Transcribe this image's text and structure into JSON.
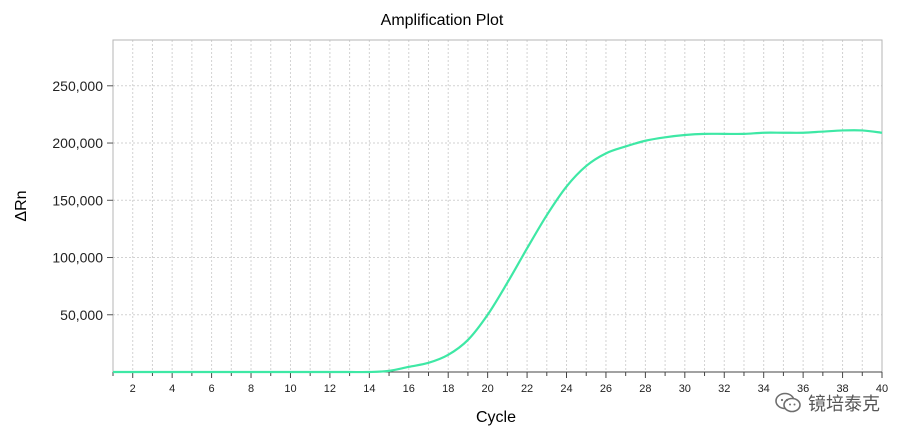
{
  "chart_data": {
    "type": "line",
    "title": "Amplification Plot",
    "xlabel": "Cycle",
    "ylabel": "ΔRn",
    "xlim": [
      1,
      40
    ],
    "ylim": [
      0,
      290000
    ],
    "x_ticks": [
      2,
      4,
      6,
      8,
      10,
      12,
      14,
      16,
      18,
      20,
      22,
      24,
      26,
      28,
      30,
      32,
      34,
      36,
      38,
      40
    ],
    "y_ticks": [
      50000,
      100000,
      150000,
      200000,
      250000
    ],
    "y_tick_labels": [
      "50,000",
      "100,000",
      "150,000",
      "200,000",
      "250,000"
    ],
    "grid": true,
    "series": [
      {
        "color": "#3ee8a5",
        "x": [
          1,
          2,
          4,
          6,
          8,
          10,
          12,
          13,
          14,
          15,
          16,
          17,
          18,
          19,
          20,
          21,
          22,
          23,
          24,
          25,
          26,
          27,
          28,
          29,
          30,
          31,
          32,
          33,
          34,
          35,
          36,
          37,
          38,
          39,
          40
        ],
        "y": [
          0,
          0,
          0,
          0,
          0,
          0,
          0,
          0,
          0,
          1000,
          4500,
          8000,
          15000,
          28000,
          50000,
          78000,
          108000,
          137000,
          162000,
          180000,
          191000,
          197000,
          202000,
          205000,
          207000,
          208000,
          208000,
          208000,
          209000,
          209000,
          209000,
          210000,
          211000,
          211000,
          209000
        ]
      }
    ]
  },
  "watermark": {
    "text": "镜培泰克",
    "icon": "wechat-icon"
  }
}
